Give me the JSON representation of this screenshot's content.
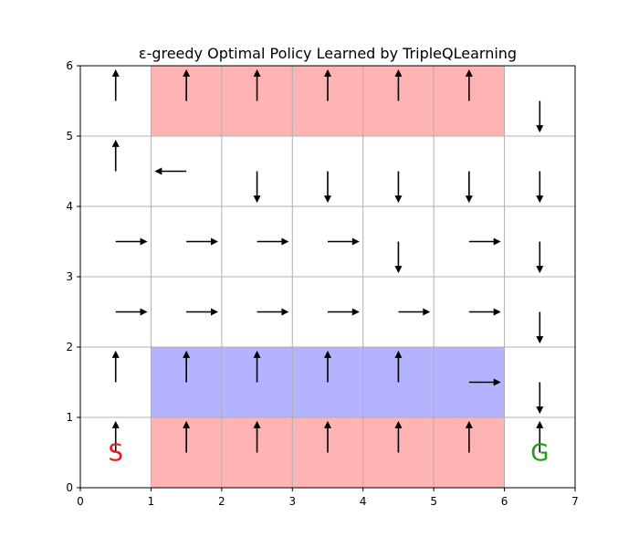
{
  "chart_data": {
    "type": "gridworld",
    "title": "ε-greedy Optimal Policy Learned by TripleQLearning",
    "xlim": [
      0,
      7
    ],
    "ylim": [
      0,
      6
    ],
    "xticks": [
      0,
      1,
      2,
      3,
      4,
      5,
      6,
      7
    ],
    "yticks": [
      0,
      1,
      2,
      3,
      4,
      5,
      6
    ],
    "grid": true,
    "regions": [
      {
        "name": "top-hazard",
        "x": [
          1,
          6
        ],
        "y": [
          5,
          6
        ],
        "color": "#ffb3b3"
      },
      {
        "name": "bottom-hazard",
        "x": [
          1,
          6
        ],
        "y": [
          0,
          1
        ],
        "color": "#ffb3b3"
      },
      {
        "name": "blue-zone",
        "x": [
          1,
          6
        ],
        "y": [
          1,
          2
        ],
        "color": "#b3b3ff"
      }
    ],
    "markers": [
      {
        "name": "start",
        "label": "S",
        "x": 0.5,
        "y": 0.5,
        "color": "#e31a1c"
      },
      {
        "name": "goal",
        "label": "G",
        "x": 6.5,
        "y": 0.5,
        "color": "#1a9e1a"
      }
    ],
    "policy": [
      {
        "x": 0,
        "y": 5,
        "action": "up"
      },
      {
        "x": 1,
        "y": 5,
        "action": "up"
      },
      {
        "x": 2,
        "y": 5,
        "action": "up"
      },
      {
        "x": 3,
        "y": 5,
        "action": "up"
      },
      {
        "x": 4,
        "y": 5,
        "action": "up"
      },
      {
        "x": 5,
        "y": 5,
        "action": "up"
      },
      {
        "x": 6,
        "y": 5,
        "action": "down"
      },
      {
        "x": 0,
        "y": 4,
        "action": "up"
      },
      {
        "x": 1,
        "y": 4,
        "action": "left"
      },
      {
        "x": 2,
        "y": 4,
        "action": "down"
      },
      {
        "x": 3,
        "y": 4,
        "action": "down"
      },
      {
        "x": 4,
        "y": 4,
        "action": "down"
      },
      {
        "x": 5,
        "y": 4,
        "action": "down"
      },
      {
        "x": 6,
        "y": 4,
        "action": "down"
      },
      {
        "x": 0,
        "y": 3,
        "action": "right"
      },
      {
        "x": 1,
        "y": 3,
        "action": "right"
      },
      {
        "x": 2,
        "y": 3,
        "action": "right"
      },
      {
        "x": 3,
        "y": 3,
        "action": "right"
      },
      {
        "x": 4,
        "y": 3,
        "action": "down"
      },
      {
        "x": 5,
        "y": 3,
        "action": "right"
      },
      {
        "x": 6,
        "y": 3,
        "action": "down"
      },
      {
        "x": 0,
        "y": 2,
        "action": "right"
      },
      {
        "x": 1,
        "y": 2,
        "action": "right"
      },
      {
        "x": 2,
        "y": 2,
        "action": "right"
      },
      {
        "x": 3,
        "y": 2,
        "action": "right"
      },
      {
        "x": 4,
        "y": 2,
        "action": "right"
      },
      {
        "x": 5,
        "y": 2,
        "action": "right"
      },
      {
        "x": 6,
        "y": 2,
        "action": "down"
      },
      {
        "x": 0,
        "y": 1,
        "action": "up"
      },
      {
        "x": 1,
        "y": 1,
        "action": "up"
      },
      {
        "x": 2,
        "y": 1,
        "action": "up"
      },
      {
        "x": 3,
        "y": 1,
        "action": "up"
      },
      {
        "x": 4,
        "y": 1,
        "action": "up"
      },
      {
        "x": 5,
        "y": 1,
        "action": "right"
      },
      {
        "x": 6,
        "y": 1,
        "action": "down"
      },
      {
        "x": 0,
        "y": 0,
        "action": "up"
      },
      {
        "x": 1,
        "y": 0,
        "action": "up"
      },
      {
        "x": 2,
        "y": 0,
        "action": "up"
      },
      {
        "x": 3,
        "y": 0,
        "action": "up"
      },
      {
        "x": 4,
        "y": 0,
        "action": "up"
      },
      {
        "x": 5,
        "y": 0,
        "action": "up"
      },
      {
        "x": 6,
        "y": 0,
        "action": "up"
      }
    ]
  }
}
